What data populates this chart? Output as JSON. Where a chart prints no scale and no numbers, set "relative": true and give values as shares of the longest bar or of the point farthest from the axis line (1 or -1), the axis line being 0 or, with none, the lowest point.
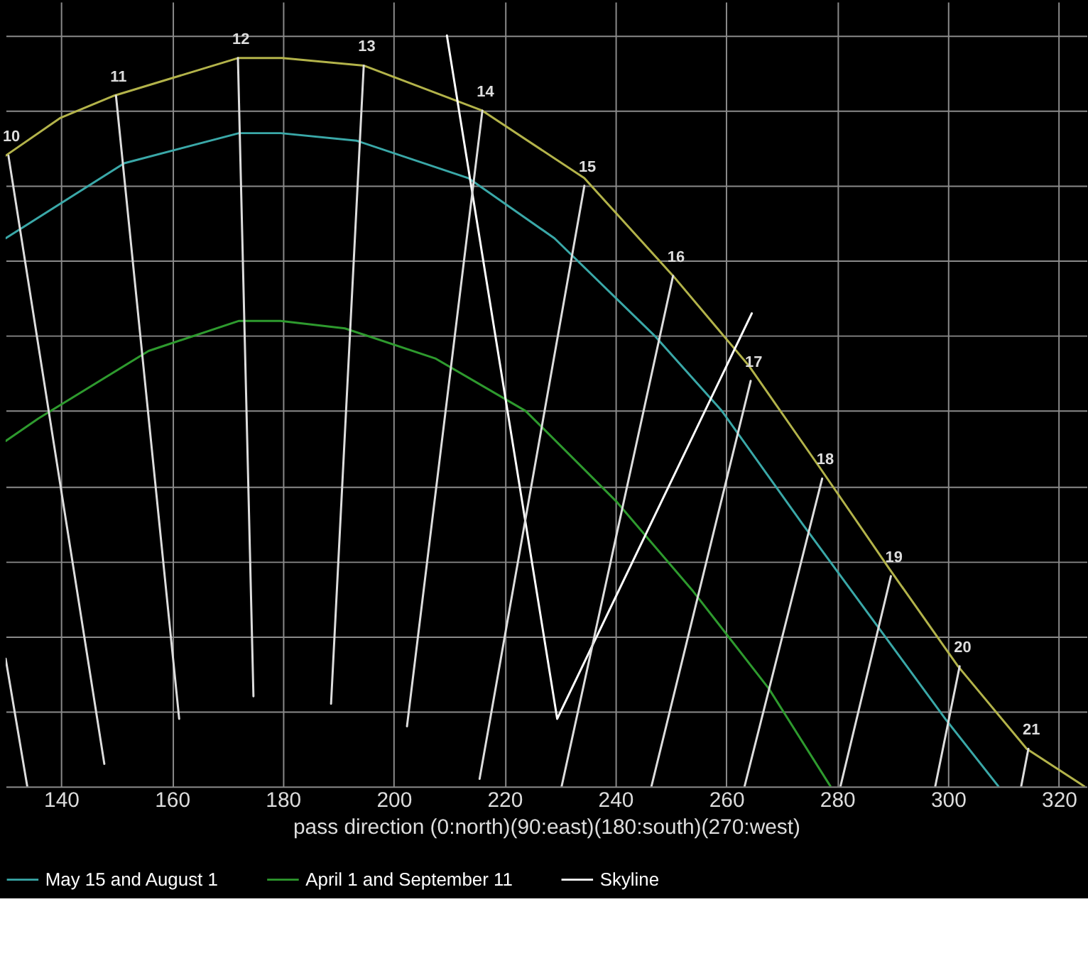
{
  "chart_data": {
    "type": "line",
    "relative": true,
    "xlabel": "pass direction (0:north)(90:east)(180:south)(270:west)",
    "xlim": [
      130,
      325
    ],
    "xticks": [
      140,
      160,
      180,
      200,
      220,
      240,
      260,
      280,
      300,
      320
    ],
    "grid": true,
    "legend": "bottom",
    "marker": "none",
    "line_style": "solid",
    "series": [
      {
        "color": "#b3b34a",
        "x": [
          130,
          139.8,
          149.6,
          171.9,
          179.9,
          194.6,
          216.0,
          234.4,
          250.4,
          264.1,
          277.3,
          289.4,
          301.8,
          314.2,
          324.6
        ],
        "values": [
          0.84,
          0.89,
          0.92,
          0.97,
          0.97,
          0.96,
          0.9,
          0.81,
          0.68,
          0.56,
          0.42,
          0.29,
          0.16,
          0.05,
          0
        ]
      },
      {
        "name": "May 15 and August 1",
        "color": "#3aa8a8",
        "x": [
          130,
          151.4,
          172.1,
          179.6,
          193.3,
          213.5,
          229,
          247.1,
          259.2,
          273.7,
          287.6,
          299.5,
          309.1
        ],
        "values": [
          0.73,
          0.83,
          0.87,
          0.87,
          0.86,
          0.81,
          0.73,
          0.6,
          0.5,
          0.35,
          0.21,
          0.09,
          0
        ]
      },
      {
        "name": "April 1 and September 11",
        "color": "#2e9a2e",
        "x": [
          130,
          135.9,
          155.8,
          172.1,
          179.6,
          191.2,
          207.5,
          223.8,
          240.1,
          254,
          267.7,
          278.8
        ],
        "values": [
          0.46,
          0.49,
          0.58,
          0.62,
          0.62,
          0.61,
          0.57,
          0.5,
          0.38,
          0.26,
          0.13,
          0
        ]
      },
      {
        "name": "Skyline",
        "color": "#ffffff",
        "x": [
          209.6,
          229.5,
          264.6
        ],
        "values": [
          1.0,
          0.09,
          0.63
        ]
      },
      {
        "color": "#dddddd",
        "x": [
          130,
          133.9
        ],
        "values": [
          0.17,
          0
        ]
      },
      {
        "color": "#dddddd",
        "x": [
          130.5,
          147.8
        ],
        "values": [
          0.84,
          0.03
        ]
      },
      {
        "color": "#dddddd",
        "x": [
          149.9,
          161.3
        ],
        "values": [
          0.92,
          0.09
        ]
      },
      {
        "color": "#dddddd",
        "x": [
          171.9,
          174.7
        ],
        "values": [
          0.97,
          0.12
        ]
      },
      {
        "color": "#dddddd",
        "x": [
          194.6,
          188.7
        ],
        "values": [
          0.96,
          0.11
        ]
      },
      {
        "color": "#dddddd",
        "x": [
          216,
          202.4
        ],
        "values": [
          0.9,
          0.08
        ]
      },
      {
        "color": "#dddddd",
        "x": [
          234.4,
          215.5
        ],
        "values": [
          0.8,
          0.01
        ]
      },
      {
        "color": "#dddddd",
        "x": [
          250.4,
          230.3
        ],
        "values": [
          0.68,
          0
        ]
      },
      {
        "color": "#dddddd",
        "x": [
          264.4,
          246.5
        ],
        "values": [
          0.54,
          0
        ]
      },
      {
        "color": "#dddddd",
        "x": [
          277.3,
          263.3
        ],
        "values": [
          0.41,
          0
        ]
      },
      {
        "color": "#dddddd",
        "x": [
          289.7,
          280.6
        ],
        "values": [
          0.28,
          0
        ]
      },
      {
        "color": "#dddddd",
        "x": [
          302.1,
          297.7
        ],
        "values": [
          0.16,
          0
        ]
      },
      {
        "color": "#dddddd",
        "x": [
          314.5,
          313.2
        ],
        "values": [
          0.05,
          0
        ]
      }
    ],
    "annotations": [
      {
        "text": "10",
        "x": 130.5,
        "y": 0.84
      },
      {
        "text": "11",
        "x": 149.9,
        "y": 0.92
      },
      {
        "text": "12",
        "x": 171.9,
        "y": 0.97
      },
      {
        "text": "13",
        "x": 194.6,
        "y": 0.96
      },
      {
        "text": "14",
        "x": 216,
        "y": 0.9
      },
      {
        "text": "15",
        "x": 234.4,
        "y": 0.8
      },
      {
        "text": "16",
        "x": 250.4,
        "y": 0.68
      },
      {
        "text": "17",
        "x": 264.4,
        "y": 0.54
      },
      {
        "text": "18",
        "x": 277.3,
        "y": 0.41
      },
      {
        "text": "19",
        "x": 289.7,
        "y": 0.28
      },
      {
        "text": "20",
        "x": 302.1,
        "y": 0.16
      },
      {
        "text": "21",
        "x": 314.5,
        "y": 0.05
      }
    ]
  }
}
